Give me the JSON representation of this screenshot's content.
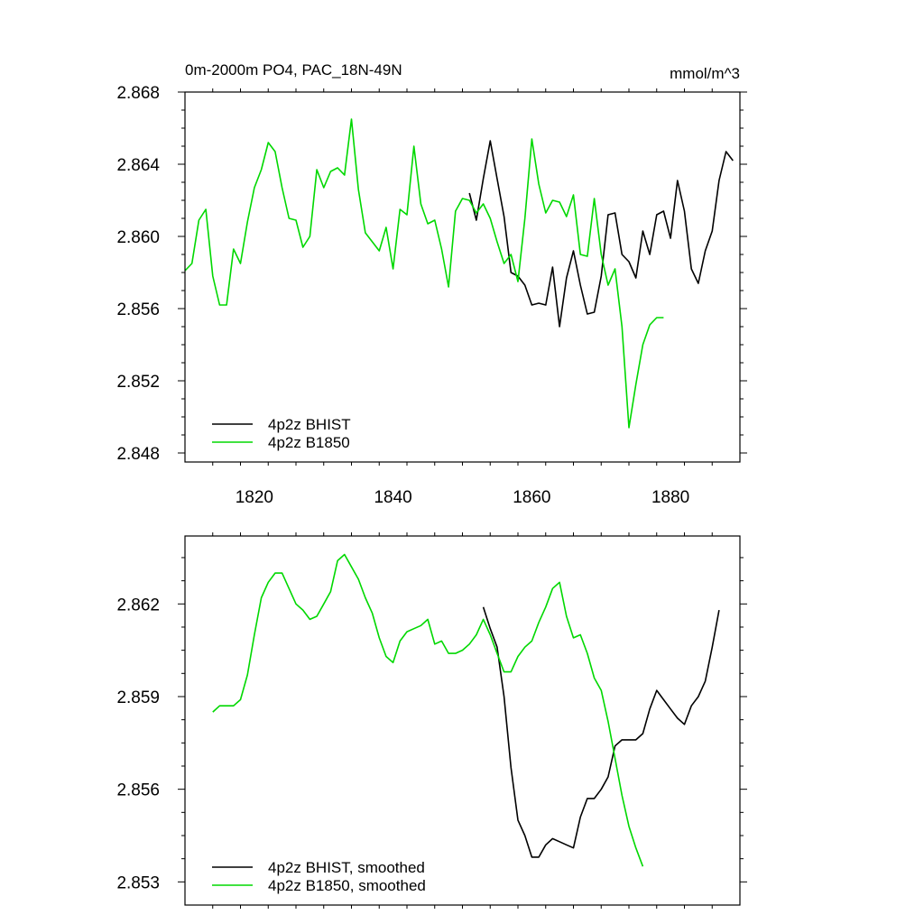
{
  "chart_data": [
    {
      "type": "line",
      "title": "0m-2000m PO4, PAC_18N-49N",
      "units": "mmol/m^3",
      "xlabel": "",
      "ylabel": "",
      "xlim": [
        1810,
        1890
      ],
      "ylim": [
        2.8475,
        2.868
      ],
      "x_ticks": [
        1820,
        1840,
        1860,
        1880
      ],
      "x_tick_labels": [
        "1820",
        "1840",
        "1860",
        "1880"
      ],
      "y_ticks": [
        2.848,
        2.852,
        2.856,
        2.86,
        2.864,
        2.868
      ],
      "y_tick_labels": [
        "2.848",
        "2.852",
        "2.856",
        "2.860",
        "2.864",
        "2.868"
      ],
      "x_minor_step": 4,
      "y_minor_step": 0.001,
      "legend_position": "bottom-left",
      "series": [
        {
          "name": "4p2z BHIST",
          "color": "#000000",
          "x": [
            1851,
            1852,
            1853,
            1854,
            1855,
            1856,
            1857,
            1858,
            1859,
            1860,
            1861,
            1862,
            1863,
            1864,
            1865,
            1866,
            1867,
            1868,
            1869,
            1870,
            1871,
            1872,
            1873,
            1874,
            1875,
            1876,
            1877,
            1878,
            1879,
            1880,
            1881,
            1882,
            1883,
            1884,
            1885,
            1886,
            1887,
            1888,
            1889
          ],
          "y": [
            2.8624,
            2.8609,
            2.8632,
            2.8653,
            2.8632,
            2.8611,
            2.858,
            2.8578,
            2.8573,
            2.8562,
            2.8563,
            2.8562,
            2.8583,
            2.855,
            2.8577,
            2.8592,
            2.8573,
            2.8557,
            2.8558,
            2.8578,
            2.8612,
            2.8613,
            2.859,
            2.8586,
            2.8577,
            2.8603,
            2.859,
            2.8612,
            2.8614,
            2.8599,
            2.8631,
            2.8614,
            2.8582,
            2.8574,
            2.8592,
            2.8603,
            2.8631,
            2.8647,
            2.8642
          ]
        },
        {
          "name": "4p2z B1850",
          "color": "#00d800",
          "x": [
            1810,
            1811,
            1812,
            1813,
            1814,
            1815,
            1816,
            1817,
            1818,
            1819,
            1820,
            1821,
            1822,
            1823,
            1824,
            1825,
            1826,
            1827,
            1828,
            1829,
            1830,
            1831,
            1832,
            1833,
            1834,
            1835,
            1836,
            1837,
            1838,
            1839,
            1840,
            1841,
            1842,
            1843,
            1844,
            1845,
            1846,
            1847,
            1848,
            1849,
            1850,
            1851,
            1852,
            1853,
            1854,
            1855,
            1856,
            1857,
            1858,
            1859,
            1860,
            1861,
            1862,
            1863,
            1864,
            1865,
            1866,
            1867,
            1868,
            1869,
            1870,
            1871,
            1872,
            1873,
            1874,
            1875,
            1876,
            1877,
            1878,
            1879
          ],
          "y": [
            2.8581,
            2.8585,
            2.8609,
            2.8615,
            2.8578,
            2.8562,
            2.8562,
            2.8593,
            2.8585,
            2.8608,
            2.8627,
            2.8637,
            2.8652,
            2.8647,
            2.8627,
            2.861,
            2.8609,
            2.8594,
            2.86,
            2.8637,
            2.8627,
            2.8636,
            2.8638,
            2.8634,
            2.8665,
            2.8626,
            2.8602,
            2.8597,
            2.8592,
            2.8605,
            2.8582,
            2.8615,
            2.8612,
            2.865,
            2.8618,
            2.8607,
            2.8609,
            2.8593,
            2.8572,
            2.8614,
            2.8621,
            2.862,
            2.8613,
            2.8618,
            2.861,
            2.8597,
            2.8585,
            2.859,
            2.8575,
            2.861,
            2.8654,
            2.8629,
            2.8613,
            2.862,
            2.8619,
            2.8611,
            2.8623,
            2.859,
            2.8589,
            2.8621,
            2.859,
            2.8573,
            2.8582,
            2.855,
            2.8494,
            2.8518,
            2.854,
            2.8551,
            2.8555,
            2.8555
          ]
        }
      ]
    },
    {
      "type": "line",
      "title": "",
      "xlabel": "",
      "ylabel": "",
      "xlim": [
        1810,
        1890
      ],
      "ylim": [
        2.85225,
        2.8642
      ],
      "x_ticks": [
        1820,
        1840,
        1860,
        1880
      ],
      "y_ticks": [
        2.853,
        2.856,
        2.859,
        2.862
      ],
      "y_tick_labels": [
        "2.853",
        "2.856",
        "2.859",
        "2.862"
      ],
      "x_minor_step": 4,
      "y_minor_step": 0.00075,
      "legend_position": "bottom-left",
      "series": [
        {
          "name": "4p2z BHIST, smoothed",
          "color": "#000000",
          "x": [
            1853,
            1854,
            1855,
            1856,
            1857,
            1858,
            1859,
            1860,
            1861,
            1862,
            1863,
            1864,
            1865,
            1866,
            1867,
            1868,
            1869,
            1870,
            1871,
            1872,
            1873,
            1874,
            1875,
            1876,
            1877,
            1878,
            1879,
            1880,
            1881,
            1882,
            1883,
            1884,
            1885,
            1886,
            1887
          ],
          "y": [
            2.8619,
            2.8612,
            2.8606,
            2.859,
            2.8567,
            2.855,
            2.8545,
            2.8538,
            2.8538,
            2.8542,
            2.8544,
            2.8543,
            2.8542,
            2.8541,
            2.8551,
            2.8557,
            2.8557,
            2.856,
            2.8564,
            2.8574,
            2.8576,
            2.8576,
            2.8576,
            2.8578,
            2.8586,
            2.8592,
            2.8589,
            2.8586,
            2.8583,
            2.8581,
            2.8587,
            2.859,
            2.8595,
            2.8606,
            2.8618
          ]
        },
        {
          "name": "4p2z B1850, smoothed",
          "color": "#00d800",
          "x": [
            1814,
            1815,
            1816,
            1817,
            1818,
            1819,
            1820,
            1821,
            1822,
            1823,
            1824,
            1825,
            1826,
            1827,
            1828,
            1829,
            1830,
            1831,
            1832,
            1833,
            1834,
            1835,
            1836,
            1837,
            1838,
            1839,
            1840,
            1841,
            1842,
            1843,
            1844,
            1845,
            1846,
            1847,
            1848,
            1849,
            1850,
            1851,
            1852,
            1853,
            1854,
            1855,
            1856,
            1857,
            1858,
            1859,
            1860,
            1861,
            1862,
            1863,
            1864,
            1865,
            1866,
            1867,
            1868,
            1869,
            1870,
            1871,
            1872,
            1873,
            1874,
            1875,
            1876
          ],
          "y": [
            2.8585,
            2.8587,
            2.8587,
            2.8587,
            2.8589,
            2.8597,
            2.861,
            2.8622,
            2.8627,
            2.863,
            2.863,
            2.8625,
            2.862,
            2.8618,
            2.8615,
            2.8616,
            2.862,
            2.8624,
            2.8634,
            2.8636,
            2.8632,
            2.8628,
            2.8622,
            2.8617,
            2.8609,
            2.8603,
            2.8601,
            2.8608,
            2.8611,
            2.8612,
            2.8613,
            2.8615,
            2.8607,
            2.8608,
            2.8604,
            2.8604,
            2.8605,
            2.8607,
            2.861,
            2.8615,
            2.861,
            2.8604,
            2.8598,
            2.8598,
            2.8603,
            2.8606,
            2.8608,
            2.8614,
            2.8619,
            2.8625,
            2.8627,
            2.8616,
            2.8609,
            2.861,
            2.8604,
            2.8596,
            2.8592,
            2.8582,
            2.857,
            2.8558,
            2.8548,
            2.8541,
            2.8535
          ]
        }
      ]
    }
  ]
}
